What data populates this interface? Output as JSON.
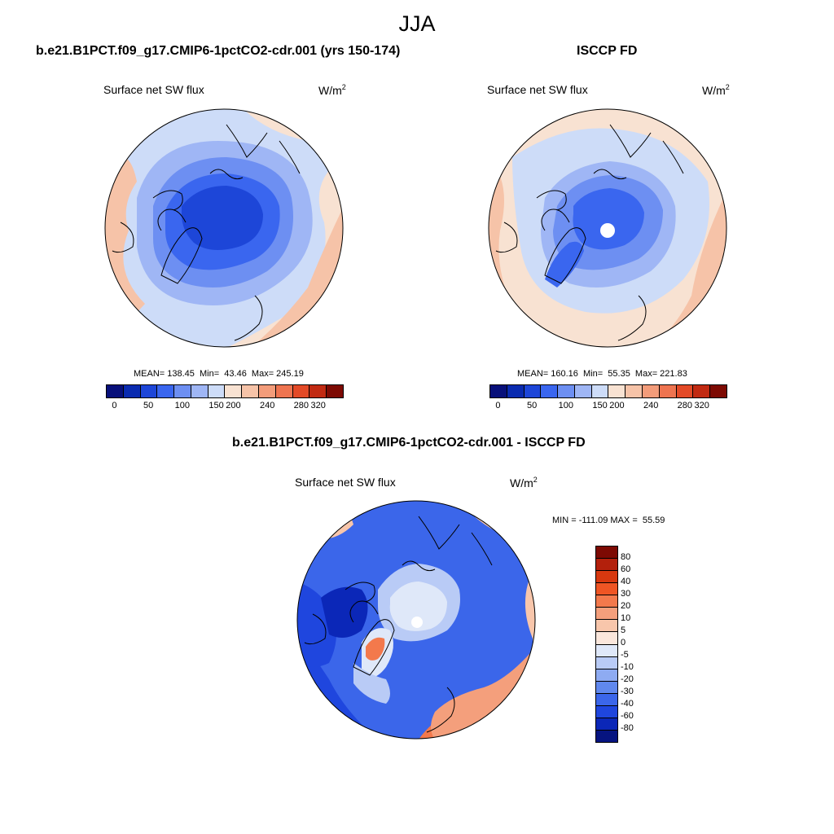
{
  "title": "JJA",
  "panels": {
    "model": {
      "title": "b.e21.B1PCT.f09_g17.CMIP6-1pctCO2-cdr.001 (yrs 150-174)",
      "var_label": "Surface net SW flux",
      "units_base": "W/m",
      "units_exp": "2",
      "stats": "MEAN= 138.45  Min=  43.46  Max= 245.19"
    },
    "obs": {
      "title": "ISCCP FD",
      "var_label": "Surface net SW flux",
      "units_base": "W/m",
      "units_exp": "2",
      "stats": "MEAN= 160.16  Min=  55.35  Max= 221.83"
    },
    "diff": {
      "title": "b.e21.B1PCT.f09_g17.CMIP6-1pctCO2-cdr.001 - ISCCP FD",
      "var_label": "Surface net SW flux",
      "units_base": "W/m",
      "units_exp": "2",
      "stats": "MIN = -111.09 MAX =  55.59"
    }
  },
  "colorbar_main": {
    "colors": [
      "#08107a",
      "#0a2bb0",
      "#1d46d8",
      "#3a66ef",
      "#6d8ff2",
      "#9fb6f5",
      "#cddcf8",
      "#f8e2d2",
      "#f6c3a8",
      "#f39c7a",
      "#ee7450",
      "#e34a27",
      "#c12a12",
      "#7d0a03"
    ],
    "labels": [
      "0",
      "50",
      "100",
      "150",
      "200",
      "240",
      "280",
      "320"
    ]
  },
  "colorbar_diff": {
    "colors": [
      "#7d0a03",
      "#b3200c",
      "#d7380f",
      "#ef5524",
      "#f3794c",
      "#f49f7c",
      "#f8c6ab",
      "#fbe7dc",
      "#dfe8f9",
      "#b9cbf6",
      "#8eabf2",
      "#6088ee",
      "#3b66ea",
      "#1f46de",
      "#0b27b8",
      "#061480"
    ],
    "labels": [
      "80",
      "60",
      "40",
      "30",
      "20",
      "10",
      "5",
      "0",
      "-5",
      "-10",
      "-20",
      "-30",
      "-40",
      "-60",
      "-80"
    ]
  },
  "maps": {
    "model": {
      "ocean_color": "#6d8ff2",
      "shading": [
        {
          "value": 240,
          "color": "#f6c3a8"
        },
        {
          "value": 200,
          "color": "#f8e2d2"
        },
        {
          "value": 150,
          "color": "#cddcf8"
        },
        {
          "value": 120,
          "color": "#9fb6f5"
        },
        {
          "value": 90,
          "color": "#6d8ff2"
        },
        {
          "value": 70,
          "color": "#3a66ef"
        },
        {
          "value": 55,
          "color": "#1d46d8"
        }
      ]
    },
    "obs": {
      "ocean_color": "#cddcf8",
      "shading": [
        {
          "value": 220,
          "color": "#f6c3a8"
        },
        {
          "value": 200,
          "color": "#f8e2d2"
        },
        {
          "value": 150,
          "color": "#cddcf8"
        },
        {
          "value": 120,
          "color": "#9fb6f5"
        },
        {
          "value": 90,
          "color": "#6d8ff2"
        },
        {
          "value": 65,
          "color": "#3a66ef"
        }
      ]
    },
    "diff": {
      "ocean_color": "#3b66ea",
      "shading": [
        {
          "value": 30,
          "color": "#f3794c"
        },
        {
          "value": 10,
          "color": "#f8c6ab"
        },
        {
          "value": 0,
          "color": "#dfe8f9"
        },
        {
          "value": -10,
          "color": "#b9cbf6"
        },
        {
          "value": -30,
          "color": "#3b66ea"
        },
        {
          "value": -60,
          "color": "#1f46de"
        },
        {
          "value": -80,
          "color": "#0b27b8"
        }
      ]
    }
  }
}
